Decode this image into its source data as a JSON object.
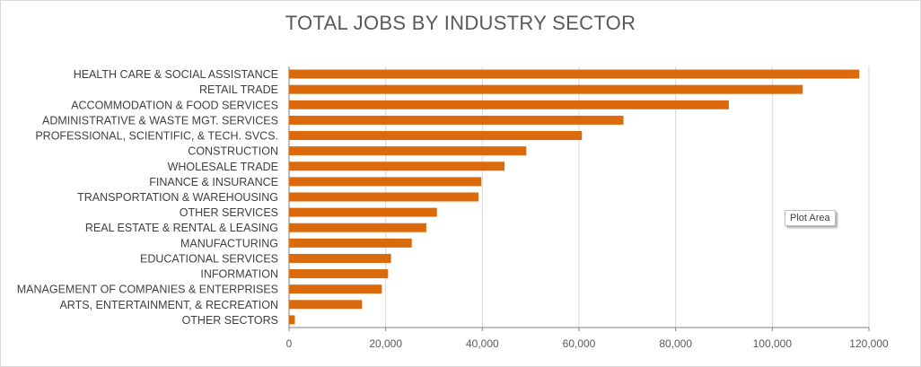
{
  "chart_data": {
    "type": "bar",
    "orientation": "horizontal",
    "title": "TOTAL JOBS BY INDUSTRY SECTOR",
    "categories": [
      "HEALTH CARE & SOCIAL ASSISTANCE",
      "RETAIL TRADE",
      "ACCOMMODATION & FOOD SERVICES",
      "ADMINISTRATIVE & WASTE MGT. SERVICES",
      "PROFESSIONAL, SCIENTIFIC, & TECH. SVCS.",
      "CONSTRUCTION",
      "WHOLESALE TRADE",
      "FINANCE & INSURANCE",
      "TRANSPORTATION & WAREHOUSING",
      "OTHER SERVICES",
      "REAL ESTATE & RENTAL & LEASING",
      "MANUFACTURING",
      "EDUCATIONAL SERVICES",
      "INFORMATION",
      "MANAGEMENT OF COMPANIES & ENTERPRISES",
      "ARTS, ENTERTAINMENT, & RECREATION",
      "OTHER SECTORS"
    ],
    "values": [
      118000,
      106300,
      91000,
      69200,
      60600,
      49100,
      44600,
      39800,
      39200,
      30600,
      28400,
      25400,
      21100,
      20500,
      19200,
      15100,
      1200
    ],
    "xlim": [
      0,
      120000
    ],
    "xticks": [
      "0",
      "20,000",
      "40,000",
      "60,000",
      "80,000",
      "100,000",
      "120,000"
    ],
    "xtick_values": [
      0,
      20000,
      40000,
      60000,
      80000,
      100000,
      120000
    ],
    "grid": "vertical",
    "bar_color": "#DB6A0C",
    "xlabel": "",
    "ylabel": ""
  },
  "tooltip": "Plot Area"
}
